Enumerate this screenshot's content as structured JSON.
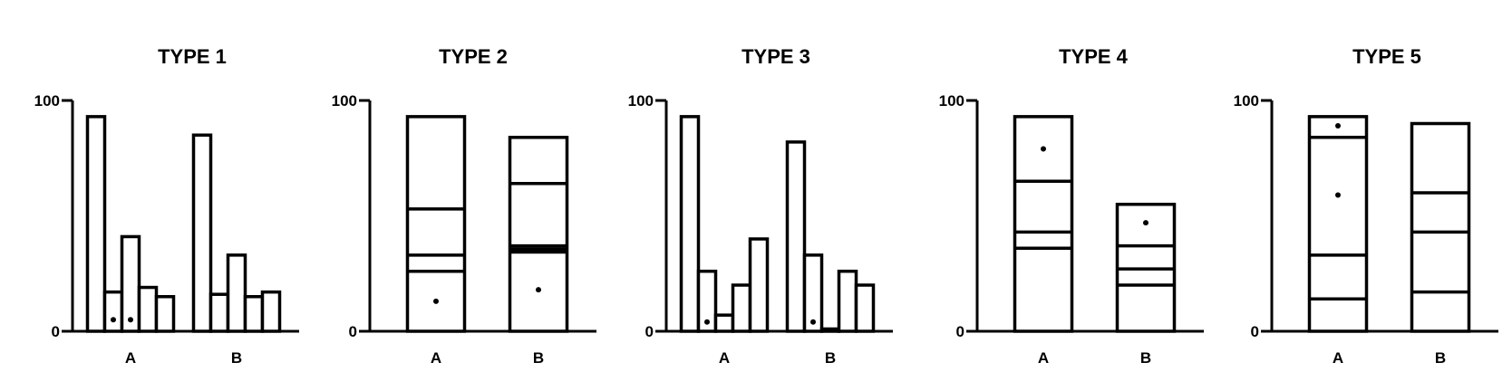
{
  "chart_data": [
    {
      "type": "bar",
      "title": "TYPE 1",
      "ylim": [
        0,
        100
      ],
      "yticks": [
        "0",
        "100"
      ],
      "categories": [
        "A",
        "B"
      ],
      "layout": "side-by-side",
      "groups": [
        {
          "category": "A",
          "values": [
            93,
            17,
            41,
            19,
            15
          ],
          "dots": [
            {
              "bar": 1,
              "y": 5
            },
            {
              "bar": 2,
              "y": 5
            }
          ]
        },
        {
          "category": "B",
          "values": [
            85,
            16,
            33,
            15,
            17
          ],
          "dots": []
        }
      ]
    },
    {
      "type": "bar",
      "title": "TYPE 2",
      "ylim": [
        0,
        100
      ],
      "yticks": [
        "0",
        "100"
      ],
      "categories": [
        "A",
        "B"
      ],
      "layout": "stacked",
      "groups": [
        {
          "category": "A",
          "top": 93,
          "dividers": [
            53,
            33,
            26
          ],
          "thick_dividers": [],
          "dots": [
            13
          ]
        },
        {
          "category": "B",
          "top": 84,
          "dividers": [
            64,
            37,
            35
          ],
          "thick_dividers": [
            35
          ],
          "dots": [
            18
          ]
        }
      ]
    },
    {
      "type": "bar",
      "title": "TYPE 3",
      "ylim": [
        0,
        100
      ],
      "yticks": [
        "0",
        "100"
      ],
      "categories": [
        "A",
        "B"
      ],
      "layout": "side-by-side",
      "groups": [
        {
          "category": "A",
          "values": [
            93,
            26,
            7,
            20,
            40
          ],
          "dots": [
            {
              "bar": 1,
              "y": 4
            }
          ]
        },
        {
          "category": "B",
          "values": [
            82,
            33,
            1,
            26,
            20
          ],
          "dots": [
            {
              "bar": 1,
              "y": 4
            }
          ]
        }
      ]
    },
    {
      "type": "bar",
      "title": "TYPE 4",
      "ylim": [
        0,
        100
      ],
      "yticks": [
        "0",
        "100"
      ],
      "categories": [
        "A",
        "B"
      ],
      "layout": "stacked",
      "groups": [
        {
          "category": "A",
          "top": 93,
          "dividers": [
            65,
            43,
            36
          ],
          "thick_dividers": [],
          "dots": [
            79
          ]
        },
        {
          "category": "B",
          "top": 55,
          "dividers": [
            37,
            27,
            20
          ],
          "thick_dividers": [],
          "dots": [
            47
          ]
        }
      ]
    },
    {
      "type": "bar",
      "title": "TYPE 5",
      "ylim": [
        0,
        100
      ],
      "yticks": [
        "0",
        "100"
      ],
      "categories": [
        "A",
        "B"
      ],
      "layout": "stacked",
      "groups": [
        {
          "category": "A",
          "top": 93,
          "dividers": [
            84,
            33,
            14
          ],
          "thick_dividers": [],
          "dots": [
            89,
            59
          ]
        },
        {
          "category": "B",
          "top": 90,
          "dividers": [
            60,
            43,
            17
          ],
          "thick_dividers": [],
          "dots": []
        }
      ]
    }
  ]
}
